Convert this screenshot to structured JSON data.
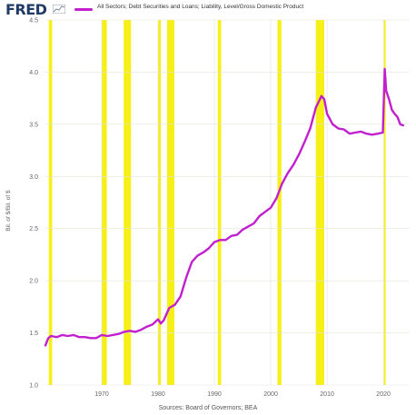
{
  "header": {
    "logo": "FRED",
    "legend_label": "All Sectors; Debt Securities and Loans; Liability, Level/Gross Domestic Product"
  },
  "colors": {
    "series": "#c21fcf",
    "recession": "#f7ef18",
    "logo": "#1f3b66"
  },
  "source": "Sources: Board of Governors; BEA",
  "chart_data": {
    "type": "line",
    "ylabel": "Bil. of $/Bil. of $",
    "ylim": [
      1.0,
      4.5
    ],
    "xlim": [
      1960,
      2024.5
    ],
    "yticks": [
      "1.0",
      "1.5",
      "2.0",
      "2.5",
      "3.0",
      "3.5",
      "4.0",
      "4.5"
    ],
    "xticks": [
      "1970",
      "1980",
      "1990",
      "2000",
      "2010",
      "2020"
    ],
    "grid": true,
    "legend": "top",
    "recessions": [
      [
        1960.6,
        1961.2
      ],
      [
        1970.0,
        1970.9
      ],
      [
        1973.9,
        1975.2
      ],
      [
        1980.0,
        1980.5
      ],
      [
        1981.6,
        1982.9
      ],
      [
        1990.6,
        1991.2
      ],
      [
        2001.2,
        2001.9
      ],
      [
        2008.0,
        2009.5
      ],
      [
        2020.1,
        2020.4
      ]
    ],
    "series": [
      {
        "x": [
          1960,
          1960.5,
          1961,
          1962,
          1963,
          1964,
          1965,
          1966,
          1967,
          1968,
          1969,
          1970,
          1971,
          1972,
          1973,
          1974,
          1975,
          1976,
          1977,
          1978,
          1979,
          1980,
          1980.5,
          1981,
          1982,
          1983,
          1984,
          1985,
          1986,
          1987,
          1988,
          1989,
          1990,
          1991,
          1992,
          1993,
          1994,
          1995,
          1996,
          1997,
          1998,
          1999,
          2000,
          2001,
          2002,
          2003,
          2004,
          2005,
          2006,
          2007,
          2008,
          2009,
          2009.5,
          2010,
          2011,
          2012,
          2013,
          2014,
          2015,
          2016,
          2017,
          2018,
          2019,
          2019.9,
          2020.25,
          2020.5,
          2021,
          2021.5,
          2022,
          2022.5,
          2023,
          2023.5
        ],
        "values": [
          1.38,
          1.45,
          1.47,
          1.46,
          1.48,
          1.47,
          1.48,
          1.46,
          1.46,
          1.45,
          1.45,
          1.48,
          1.47,
          1.48,
          1.49,
          1.51,
          1.52,
          1.51,
          1.53,
          1.56,
          1.58,
          1.63,
          1.59,
          1.62,
          1.74,
          1.77,
          1.85,
          2.03,
          2.18,
          2.24,
          2.27,
          2.31,
          2.37,
          2.39,
          2.39,
          2.43,
          2.44,
          2.49,
          2.52,
          2.55,
          2.62,
          2.66,
          2.7,
          2.79,
          2.93,
          3.03,
          3.11,
          3.21,
          3.33,
          3.46,
          3.66,
          3.77,
          3.74,
          3.6,
          3.5,
          3.46,
          3.45,
          3.41,
          3.42,
          3.43,
          3.41,
          3.4,
          3.41,
          3.42,
          4.03,
          3.82,
          3.74,
          3.64,
          3.6,
          3.57,
          3.5,
          3.49
        ]
      }
    ]
  }
}
